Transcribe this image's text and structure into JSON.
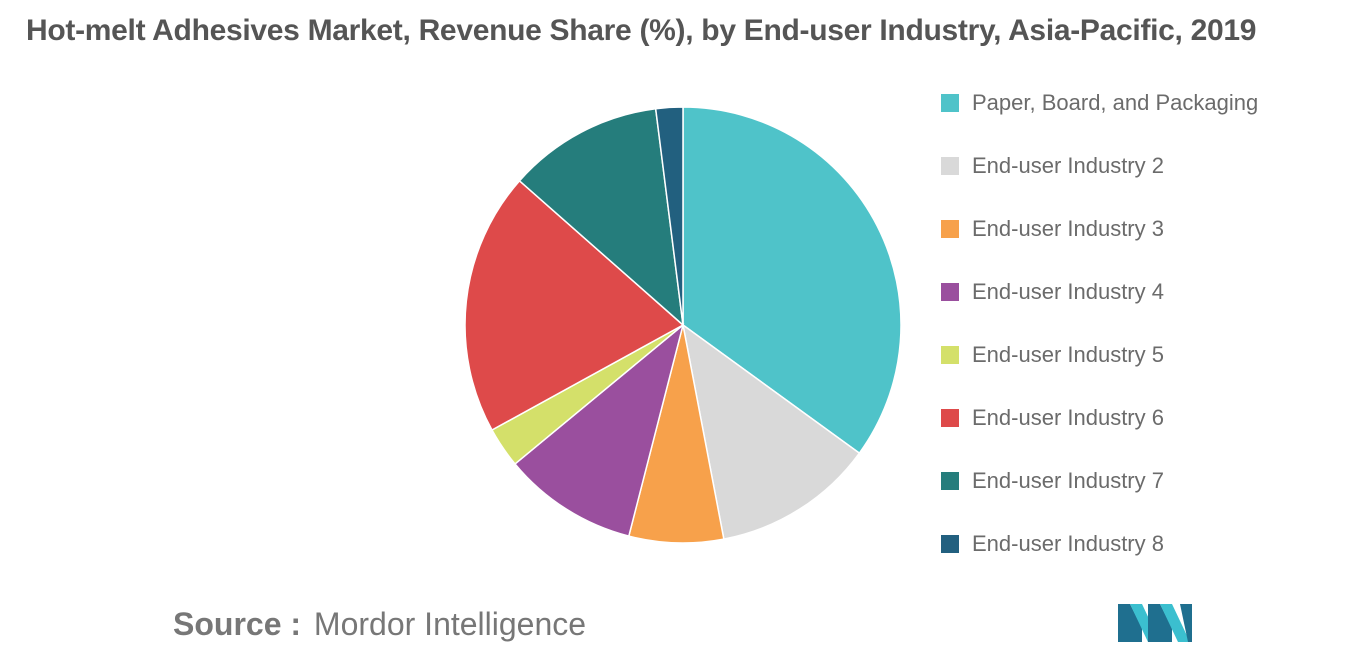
{
  "chart_data": {
    "type": "pie",
    "title": "Hot-melt Adhesives Market, Revenue Share (%), by End-user Industry, Asia-Pacific, 2019",
    "categories": [
      "Paper, Board, and Packaging",
      "End-user Industry 2",
      "End-user Industry 3",
      "End-user Industry 4",
      "End-user Industry 5",
      "End-user Industry 6",
      "End-user Industry 7",
      "End-user Industry 8"
    ],
    "values": [
      35,
      12,
      7,
      10,
      3,
      19.5,
      11.5,
      2
    ],
    "colors": [
      "#4fc3c9",
      "#d9d9d9",
      "#f7a14b",
      "#9a4f9e",
      "#d4e06a",
      "#de4a4a",
      "#257d7c",
      "#22607f"
    ],
    "start_angle_deg": 0,
    "direction": "clockwise",
    "legend_position": "right"
  },
  "source": {
    "prefix": "Source :",
    "name": "Mordor Intelligence"
  },
  "logo": {
    "icon": "mordor-intelligence-logo",
    "colors": [
      "#1f6f8f",
      "#3bbfcf"
    ]
  }
}
